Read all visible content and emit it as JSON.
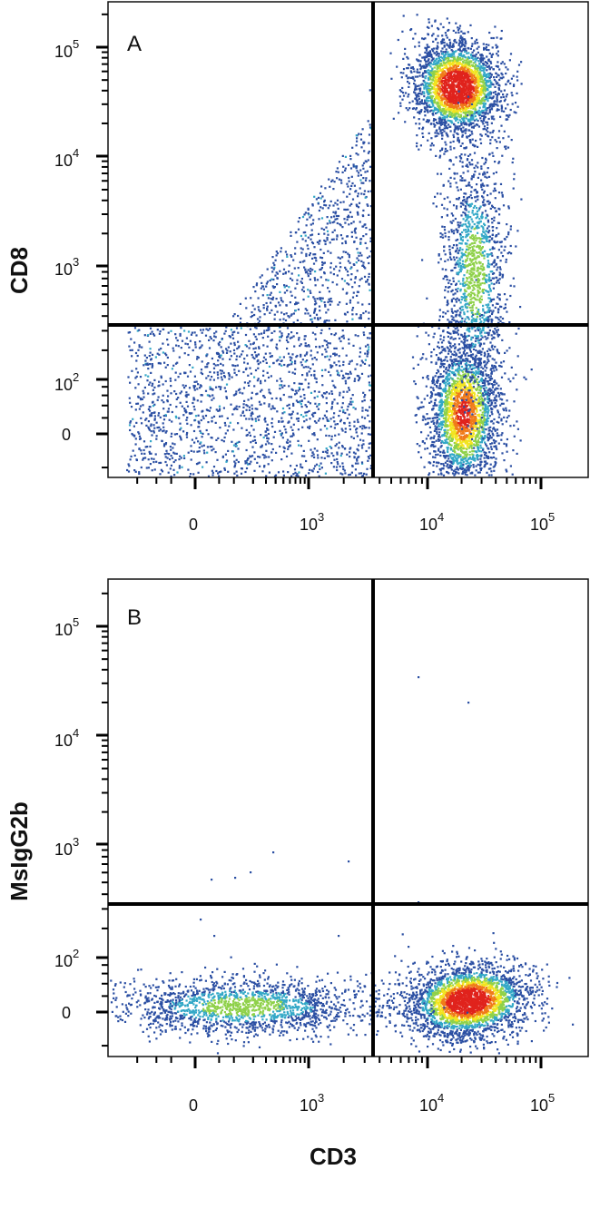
{
  "chart_data": [
    {
      "type": "scatter",
      "panel_label": "A",
      "xlabel": "",
      "ylabel": "CD8",
      "x_scale": "biexponential",
      "y_scale": "biexponential",
      "x_tick_labels": [
        {
          "base": "0",
          "exp": ""
        },
        {
          "base": "10",
          "exp": "3"
        },
        {
          "base": "10",
          "exp": "4"
        },
        {
          "base": "10",
          "exp": "5"
        }
      ],
      "y_tick_labels": [
        {
          "base": "0",
          "exp": ""
        },
        {
          "base": "10",
          "exp": "2"
        },
        {
          "base": "10",
          "exp": "3"
        },
        {
          "base": "10",
          "exp": "4"
        },
        {
          "base": "10",
          "exp": "5"
        }
      ],
      "quadrant_gate": {
        "x": 3200,
        "y": 300
      },
      "populations": [
        {
          "name": "",
          "x_center": 18000,
          "y_center": 45000,
          "density": "high"
        },
        {
          "name": "",
          "x_center": 22000,
          "y_center": 10,
          "density": "high"
        },
        {
          "name": "",
          "x_center": 25000,
          "y_center": 1200,
          "density": "medium"
        },
        {
          "name": "",
          "x_center": 150,
          "y_center": 600,
          "density": "low"
        }
      ],
      "grid": false,
      "legend": "none"
    },
    {
      "type": "scatter",
      "panel_label": "B",
      "xlabel": "CD3",
      "ylabel": "MsIgG2b",
      "x_scale": "biexponential",
      "y_scale": "biexponential",
      "x_tick_labels": [
        {
          "base": "0",
          "exp": ""
        },
        {
          "base": "10",
          "exp": "3"
        },
        {
          "base": "10",
          "exp": "4"
        },
        {
          "base": "10",
          "exp": "5"
        }
      ],
      "y_tick_labels": [
        {
          "base": "0",
          "exp": ""
        },
        {
          "base": "10",
          "exp": "2"
        },
        {
          "base": "10",
          "exp": "3"
        },
        {
          "base": "10",
          "exp": "4"
        },
        {
          "base": "10",
          "exp": "5"
        }
      ],
      "quadrant_gate": {
        "x": 3200,
        "y": 300
      },
      "populations": [
        {
          "name": "",
          "x_center": 20000,
          "y_center": 10,
          "density": "high"
        },
        {
          "name": "",
          "x_center": 100,
          "y_center": 10,
          "density": "medium"
        }
      ],
      "grid": false,
      "legend": "none"
    }
  ],
  "colors": {
    "low": "#2b4fa3",
    "mid": "#33a8c7",
    "midhigh": "#8fd14a",
    "high": "#f2e421",
    "veryhigh": "#f07b1a",
    "peak": "#e0231d",
    "gate_line": "#000000",
    "axis": "#000000"
  }
}
